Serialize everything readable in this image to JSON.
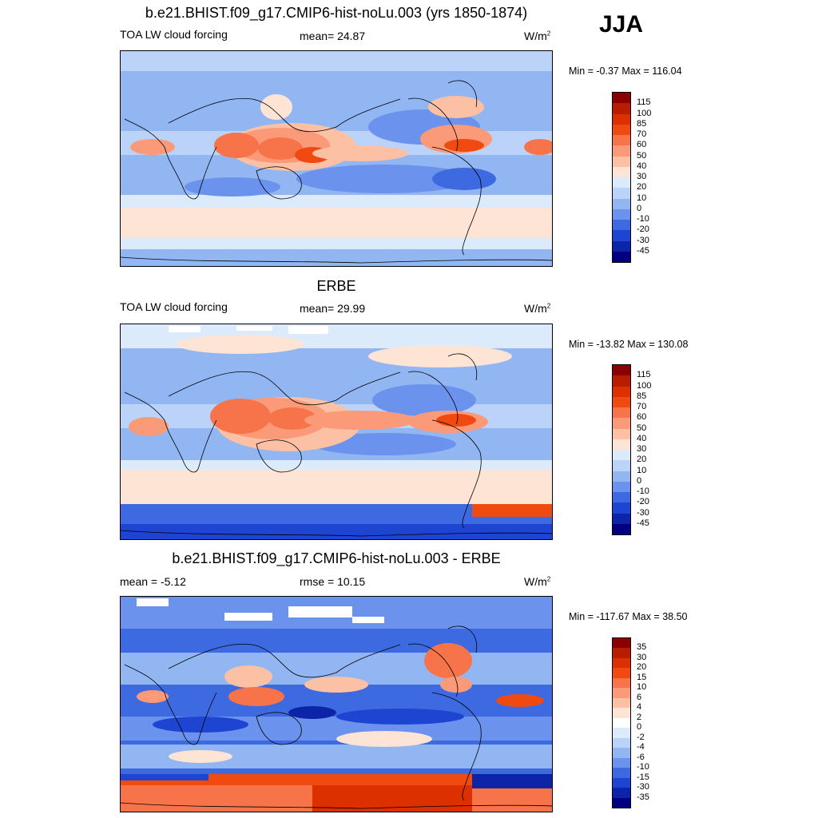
{
  "season": "JJA",
  "panels": [
    {
      "title": "b.e21.BHIST.f09_g17.CMIP6-hist-noLu.003 (yrs 1850-1874)",
      "left_label": "TOA LW cloud forcing",
      "center_label": "mean=  24.87",
      "units_base": "W/m",
      "units_exp": "2",
      "minmax": "Min =  -0.37 Max = 116.04",
      "colorbar": {
        "labels": [
          "115",
          "100",
          "85",
          "70",
          "60",
          "50",
          "40",
          "30",
          "20",
          "10",
          "0",
          "-10",
          "-20",
          "-30",
          "-45"
        ],
        "colors": [
          "#8b0000",
          "#b81d00",
          "#dc3000",
          "#f04a10",
          "#f7744a",
          "#fb9a78",
          "#fcc0a4",
          "#fde4d4",
          "#dcebfb",
          "#bbd3f8",
          "#92b6f2",
          "#6b92ec",
          "#3d6ae0",
          "#1d45d2",
          "#0b24a8",
          "#000080"
        ]
      }
    },
    {
      "title": "ERBE",
      "left_label": "TOA LW cloud forcing",
      "center_label": "mean=  29.99",
      "units_base": "W/m",
      "units_exp": "2",
      "minmax": "Min = -13.82 Max = 130.08",
      "colorbar": {
        "labels": [
          "115",
          "100",
          "85",
          "70",
          "60",
          "50",
          "40",
          "30",
          "20",
          "10",
          "0",
          "-10",
          "-20",
          "-30",
          "-45"
        ],
        "colors": [
          "#8b0000",
          "#b81d00",
          "#dc3000",
          "#f04a10",
          "#f7744a",
          "#fb9a78",
          "#fcc0a4",
          "#fde4d4",
          "#dcebfb",
          "#bbd3f8",
          "#92b6f2",
          "#6b92ec",
          "#3d6ae0",
          "#1d45d2",
          "#0b24a8",
          "#000080"
        ]
      }
    },
    {
      "title": "b.e21.BHIST.f09_g17.CMIP6-hist-noLu.003 - ERBE",
      "left_label": "mean =  -5.12",
      "center_label": "rmse =  10.15",
      "units_base": "W/m",
      "units_exp": "2",
      "minmax": "Min = -117.67 Max =  38.50",
      "colorbar": {
        "labels": [
          "35",
          "30",
          "20",
          "15",
          "10",
          "6",
          "4",
          "2",
          "0",
          "-2",
          "-4",
          "-6",
          "-10",
          "-15",
          "-30",
          "-35"
        ],
        "colors": [
          "#8b0000",
          "#b81d00",
          "#dc3000",
          "#f04a10",
          "#f7744a",
          "#fb9a78",
          "#fcc0a4",
          "#fde4d4",
          "#ffffff",
          "#dcebfb",
          "#bbd3f8",
          "#92b6f2",
          "#6b92ec",
          "#3d6ae0",
          "#1d45d2",
          "#0b24a8",
          "#000080"
        ]
      }
    }
  ]
}
